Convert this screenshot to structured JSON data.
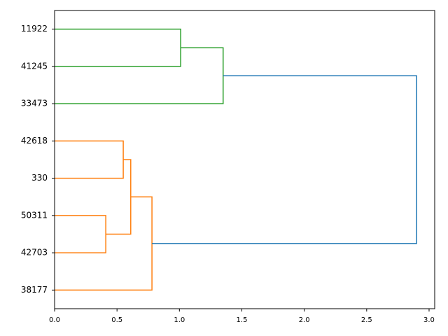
{
  "chart_data": {
    "type": "dendrogram",
    "leaves": [
      "11922",
      "41245",
      "33473",
      "42618",
      "330",
      "50311",
      "42703",
      "38177"
    ],
    "links": [
      {
        "left": 0,
        "right": 1,
        "height": 1.01,
        "color": "#2ca02c"
      },
      {
        "left": 8,
        "right": 2,
        "height": 1.35,
        "color": "#2ca02c"
      },
      {
        "left": 3,
        "right": 4,
        "height": 0.55,
        "color": "#ff7f0e"
      },
      {
        "left": 5,
        "right": 6,
        "height": 0.41,
        "color": "#ff7f0e"
      },
      {
        "left": 10,
        "right": 11,
        "height": 0.61,
        "color": "#ff7f0e"
      },
      {
        "left": 12,
        "right": 7,
        "height": 0.78,
        "color": "#ff7f0e"
      },
      {
        "left": 9,
        "right": 13,
        "height": 2.9,
        "color": "#1f77b4"
      }
    ],
    "xlim": [
      0,
      3.045
    ],
    "xticks": [
      {
        "value": 0,
        "label": "0.0"
      },
      {
        "value": 0.5,
        "label": "0.5"
      },
      {
        "value": 1,
        "label": "1.0"
      },
      {
        "value": 1.5,
        "label": "1.5"
      },
      {
        "value": 2,
        "label": "2.0"
      },
      {
        "value": 2.5,
        "label": "2.5"
      },
      {
        "value": 3,
        "label": "3.0"
      }
    ]
  }
}
